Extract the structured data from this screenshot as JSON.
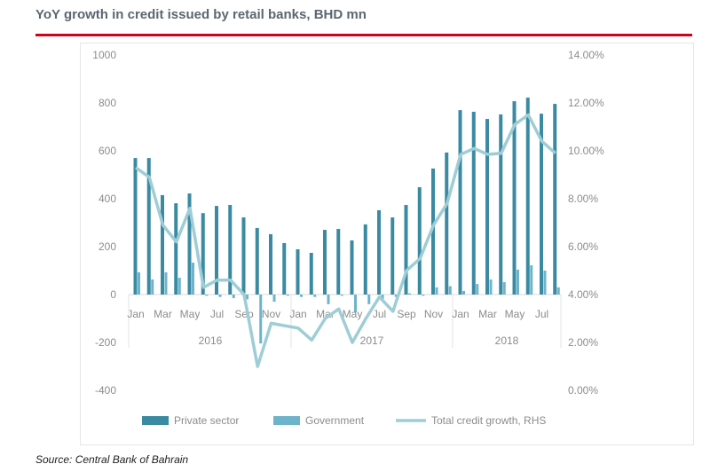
{
  "chart_data": {
    "type": "bar",
    "title": "YoY growth in credit issued by retail banks, BHD mn",
    "source": "Source: Central Bank of Bahrain",
    "categories": [
      "Jan 2016",
      "Feb 2016",
      "Mar 2016",
      "Apr 2016",
      "May 2016",
      "Jun 2016",
      "Jul 2016",
      "Aug 2016",
      "Sep 2016",
      "Oct 2016",
      "Nov 2016",
      "Dec 2016",
      "Jan 2017",
      "Feb 2017",
      "Mar 2017",
      "Apr 2017",
      "May 2017",
      "Jun 2017",
      "Jul 2017",
      "Aug 2017",
      "Sep 2017",
      "Oct 2017",
      "Nov 2017",
      "Dec 2017",
      "Jan 2018",
      "Feb 2018",
      "Mar 2018",
      "Apr 2018",
      "May 2018",
      "Jun 2018",
      "Jul 2018",
      "Aug 2018"
    ],
    "x_tick_labels": [
      "Jan",
      "",
      "Mar",
      "",
      "May",
      "",
      "Jul",
      "",
      "Sep",
      "",
      "Nov",
      "",
      "Jan",
      "",
      "Mar",
      "",
      "May",
      "",
      "Jul",
      "",
      "Sep",
      "",
      "Nov",
      "",
      "Jan",
      "",
      "Mar",
      "",
      "May",
      "",
      "Jul",
      ""
    ],
    "year_labels": [
      "2016",
      "2017",
      "2018"
    ],
    "series": [
      {
        "name": "Private sector",
        "type": "bar",
        "axis": "left",
        "color": "#3a8aa2",
        "values": [
          570,
          570,
          415,
          381,
          422,
          340,
          370,
          374,
          322,
          278,
          252,
          215,
          189,
          174,
          270,
          274,
          226,
          293,
          352,
          322,
          374,
          448,
          526,
          593,
          770,
          763,
          733,
          752,
          807,
          822,
          755,
          796
        ]
      },
      {
        "name": "Government",
        "type": "bar",
        "axis": "left",
        "color": "#6db4cb",
        "values": [
          93,
          63,
          93,
          70,
          133,
          -5,
          -10,
          -15,
          -20,
          -204,
          -30,
          -5,
          -10,
          -10,
          -40,
          -5,
          -74,
          -40,
          -20,
          -10,
          5,
          -5,
          30,
          35,
          15,
          44,
          63,
          52,
          104,
          122,
          100,
          30
        ]
      },
      {
        "name": "Total credit growth, RHS",
        "type": "line",
        "axis": "right",
        "color": "#9fcdd6",
        "values": [
          9.3,
          8.9,
          6.9,
          6.2,
          7.6,
          4.3,
          4.6,
          4.6,
          4.0,
          1.0,
          2.8,
          2.7,
          2.6,
          2.1,
          3.0,
          3.4,
          2.0,
          3.0,
          3.9,
          3.3,
          5.0,
          5.5,
          6.9,
          7.8,
          9.85,
          10.1,
          9.85,
          9.9,
          11.1,
          11.5,
          10.4,
          9.9
        ]
      }
    ],
    "ylim": [
      -400,
      1000
    ],
    "yticks": [
      "1000",
      "800",
      "600",
      "400",
      "200",
      "0",
      "-200",
      "-400"
    ],
    "y2lim": [
      0,
      14
    ],
    "y2ticks": [
      "14.00%",
      "12.00%",
      "10.00%",
      "8.00%",
      "6.00%",
      "4.00%",
      "2.00%",
      "0.00%"
    ],
    "grid": false,
    "legend_placement": "bottom"
  },
  "colors": {
    "accent_rule": "#d0021b",
    "title": "#5b6670"
  }
}
